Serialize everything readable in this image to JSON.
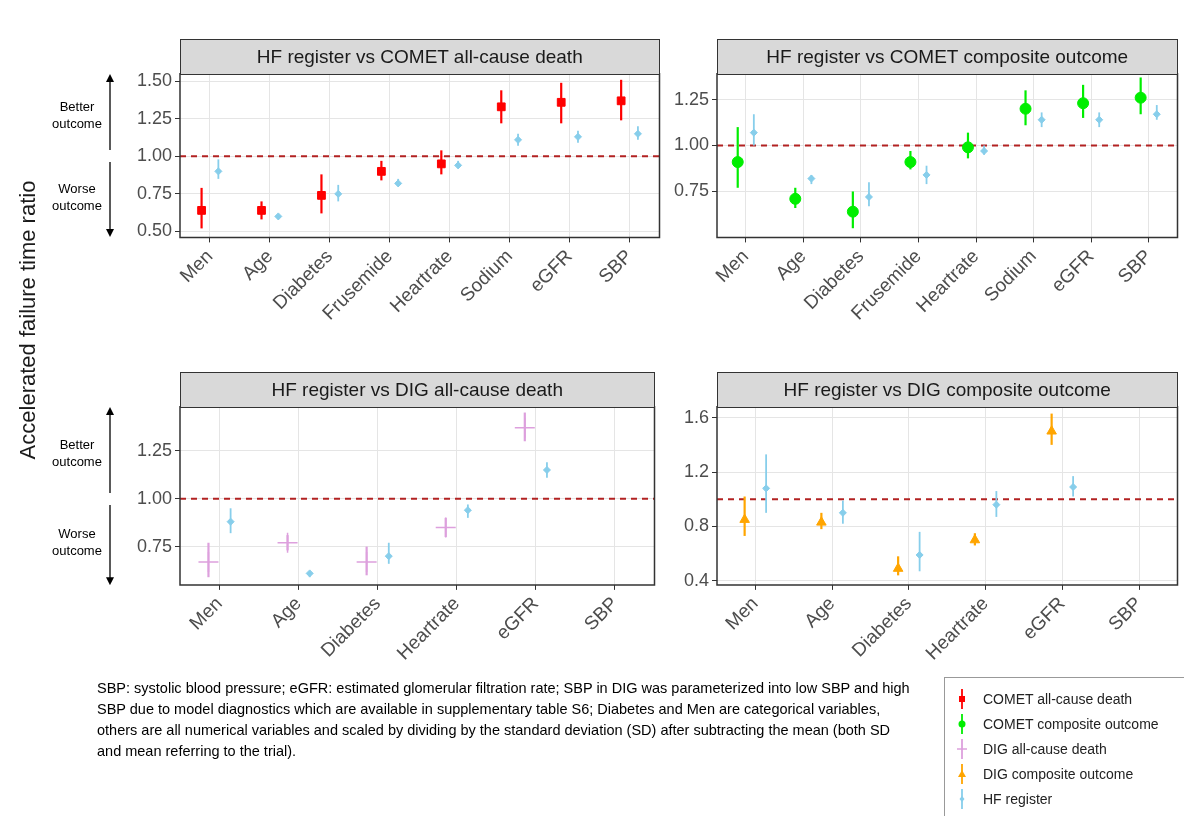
{
  "chart_data": [
    {
      "type": "scatter",
      "title": "HF register vs COMET all-cause death",
      "ylabel": "Accelerated failure time ratio",
      "categories": [
        "Men",
        "Age",
        "Diabetes",
        "Frusemide",
        "Heartrate",
        "Sodium",
        "eGFR",
        "SBP"
      ],
      "series": [
        {
          "name": "COMET all-cause death",
          "color": "#ff0000",
          "marker": "square",
          "values": [
            0.64,
            0.64,
            0.74,
            0.9,
            0.95,
            1.33,
            1.36,
            1.37
          ],
          "errors": [
            [
              0.52,
              0.79
            ],
            [
              0.58,
              0.7
            ],
            [
              0.62,
              0.88
            ],
            [
              0.84,
              0.97
            ],
            [
              0.88,
              1.04
            ],
            [
              1.22,
              1.44
            ],
            [
              1.22,
              1.49
            ],
            [
              1.24,
              1.51
            ]
          ]
        },
        {
          "name": "HF register",
          "color": "#87ceeb",
          "marker": "diamond",
          "values": [
            0.9,
            0.6,
            0.75,
            0.82,
            0.94,
            1.11,
            1.13,
            1.15
          ],
          "errors": [
            [
              0.85,
              0.98
            ],
            [
              0.58,
              0.61
            ],
            [
              0.7,
              0.81
            ],
            [
              0.8,
              0.85
            ],
            [
              0.92,
              0.97
            ],
            [
              1.07,
              1.15
            ],
            [
              1.09,
              1.17
            ],
            [
              1.11,
              1.2
            ]
          ]
        }
      ],
      "ylim": [
        0.46,
        1.55
      ],
      "yticks": [
        {
          "value": 0.5,
          "label": "0.50"
        },
        {
          "value": 0.75,
          "label": "0.75"
        },
        {
          "value": 1,
          "label": "1.00"
        },
        {
          "value": 1.25,
          "label": "1.25"
        },
        {
          "value": 1.5,
          "label": "1.50"
        }
      ],
      "ref_lines": [
        {
          "axis": "y",
          "value": 1,
          "color": "#b22222",
          "line_style": "dashed"
        }
      ],
      "annotations": [
        "Better outcome",
        "Worse outcome"
      ],
      "grid": true,
      "legend": "bottom right"
    },
    {
      "type": "scatter",
      "title": "HF register vs COMET composite outcome",
      "categories": [
        "Men",
        "Age",
        "Diabetes",
        "Frusemide",
        "Heartrate",
        "Sodium",
        "eGFR",
        "SBP"
      ],
      "series": [
        {
          "name": "COMET composite outcome",
          "color": "#00ee00",
          "marker": "circle",
          "values": [
            0.91,
            0.71,
            0.64,
            0.91,
            0.99,
            1.2,
            1.23,
            1.26
          ],
          "errors": [
            [
              0.77,
              1.1
            ],
            [
              0.66,
              0.77
            ],
            [
              0.55,
              0.75
            ],
            [
              0.87,
              0.97
            ],
            [
              0.93,
              1.07
            ],
            [
              1.11,
              1.3
            ],
            [
              1.15,
              1.33
            ],
            [
              1.17,
              1.37
            ]
          ]
        },
        {
          "name": "HF register",
          "color": "#87ceeb",
          "marker": "diamond",
          "values": [
            1.07,
            0.82,
            0.72,
            0.84,
            0.97,
            1.14,
            1.14,
            1.17
          ],
          "errors": [
            [
              1.0,
              1.17
            ],
            [
              0.79,
              0.84
            ],
            [
              0.67,
              0.8
            ],
            [
              0.79,
              0.89
            ],
            [
              0.95,
              1.0
            ],
            [
              1.1,
              1.18
            ],
            [
              1.1,
              1.18
            ],
            [
              1.14,
              1.22
            ]
          ]
        }
      ],
      "ylim": [
        0.5,
        1.39
      ],
      "yticks": [
        {
          "value": 0.75,
          "label": "0.75"
        },
        {
          "value": 1,
          "label": "1.00"
        },
        {
          "value": 1.25,
          "label": "1.25"
        }
      ],
      "ref_lines": [
        {
          "axis": "y",
          "value": 1,
          "color": "#b22222",
          "line_style": "dashed"
        }
      ],
      "grid": true,
      "legend": "bottom right"
    },
    {
      "type": "scatter",
      "title": "HF register vs DIG all-cause death",
      "categories": [
        "Men",
        "Age",
        "Diabetes",
        "Heartrate",
        "eGFR",
        "SBP"
      ],
      "series": [
        {
          "name": "DIG all-cause death",
          "color": "#dda0dd",
          "marker": "cross",
          "values": [
            0.67,
            0.77,
            0.67,
            0.85,
            1.37,
            null
          ],
          "errors": [
            [
              0.59,
              0.77
            ],
            [
              0.73,
              0.81
            ],
            [
              0.6,
              0.75
            ],
            [
              0.8,
              0.9
            ],
            [
              1.3,
              1.45
            ],
            null
          ]
        },
        {
          "name": "HF register",
          "color": "#87ceeb",
          "marker": "diamond",
          "values": [
            0.88,
            0.61,
            0.7,
            0.94,
            1.15,
            null
          ],
          "errors": [
            [
              0.82,
              0.95
            ],
            [
              0.59,
              0.62
            ],
            [
              0.66,
              0.77
            ],
            [
              0.9,
              0.97
            ],
            [
              1.11,
              1.19
            ],
            null
          ]
        }
      ],
      "ylim": [
        0.55,
        1.48
      ],
      "yticks": [
        {
          "value": 0.75,
          "label": "0.75"
        },
        {
          "value": 1,
          "label": "1.00"
        },
        {
          "value": 1.25,
          "label": "1.25"
        }
      ],
      "ref_lines": [
        {
          "axis": "y",
          "value": 1,
          "color": "#b22222",
          "line_style": "dashed"
        }
      ],
      "annotations": [
        "Better outcome",
        "Worse outcome",
        "SBP: systolic blood pressure; eGFR: estimated glomerular filtration rate; SBP in DIG was parameterized into low SBP and high SBP due to model diagnostics which are available in supplementary table S6; Diabetes and Men are categorical variables, others are all numerical variables and scaled by dividing by the standard deviation (SD) after subtracting the mean (both SD and mean referring to the trial)."
      ],
      "grid": true,
      "legend": "bottom right"
    },
    {
      "type": "scatter",
      "title": "HF register vs DIG composite outcome",
      "categories": [
        "Men",
        "Age",
        "Diabetes",
        "Heartrate",
        "eGFR",
        "SBP"
      ],
      "series": [
        {
          "name": "DIG composite outcome",
          "color": "#ffa500",
          "marker": "triangle",
          "values": [
            0.85,
            0.83,
            0.49,
            0.7,
            1.5,
            null
          ],
          "errors": [
            [
              0.73,
              1.02
            ],
            [
              0.78,
              0.9
            ],
            [
              0.44,
              0.58
            ],
            [
              0.66,
              0.75
            ],
            [
              1.4,
              1.63
            ],
            null
          ]
        },
        {
          "name": "HF register",
          "color": "#87ceeb",
          "marker": "diamond",
          "values": [
            1.08,
            0.9,
            0.59,
            0.96,
            1.09,
            null
          ],
          "errors": [
            [
              0.9,
              1.33
            ],
            [
              0.82,
              0.99
            ],
            [
              0.47,
              0.76
            ],
            [
              0.87,
              1.06
            ],
            [
              1.02,
              1.17
            ],
            null
          ]
        }
      ],
      "ylim": [
        0.37,
        1.68
      ],
      "yticks": [
        0.4,
        0.8,
        1.2,
        1.6
      ],
      "ref_lines": [
        {
          "axis": "y",
          "value": 1,
          "color": "#b22222",
          "line_style": "dashed"
        }
      ],
      "grid": true,
      "legend": "bottom right"
    }
  ]
}
